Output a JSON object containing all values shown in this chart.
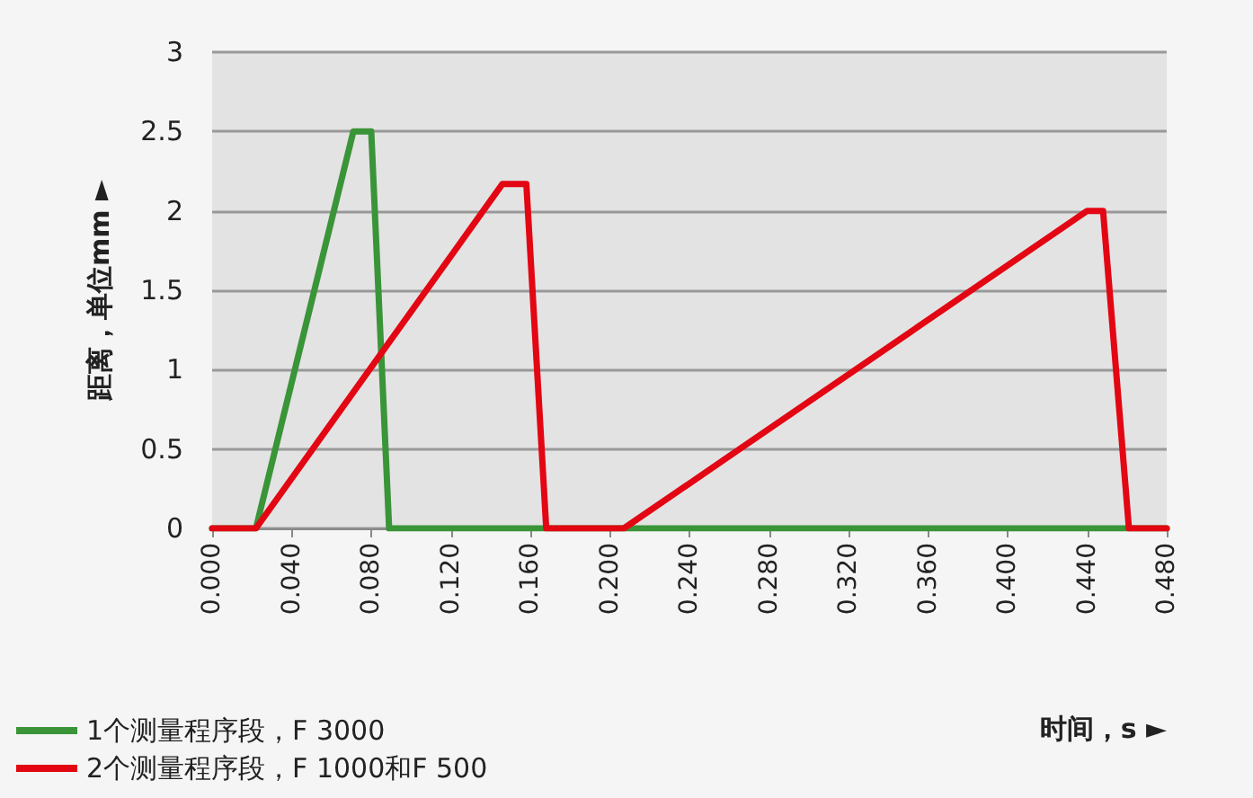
{
  "chart_data": {
    "type": "line",
    "xlabel": "时间，s ►",
    "ylabel": "距离，单位mm ►",
    "xlim": [
      0,
      0.48
    ],
    "xticks": [
      {
        "value": 0,
        "label": "0.000"
      },
      {
        "value": 0.04,
        "label": "0.040"
      },
      {
        "value": 0.08,
        "label": "0.080"
      },
      {
        "value": 0.12,
        "label": "0.120"
      },
      {
        "value": 0.16,
        "label": "0.160"
      },
      {
        "value": 0.2,
        "label": "0.200"
      },
      {
        "value": 0.24,
        "label": "0.240"
      },
      {
        "value": 0.28,
        "label": "0.280"
      },
      {
        "value": 0.32,
        "label": "0.320"
      },
      {
        "value": 0.36,
        "label": "0.360"
      },
      {
        "value": 0.4,
        "label": "0.400"
      },
      {
        "value": 0.44,
        "label": "0.440"
      },
      {
        "value": 0.48,
        "label": "0.480"
      }
    ],
    "ylim": [
      0,
      3
    ],
    "yticks": [
      0,
      0.5,
      1,
      1.5,
      2,
      2.5,
      3
    ],
    "grid": "y",
    "legend": "bottom left",
    "marker": "none",
    "line_style": "solid",
    "series": [
      {
        "name": "1个测量程序段，F 3000",
        "color": "#3a9438",
        "x": [
          0,
          0.022,
          0.071,
          0.08,
          0.089,
          0.48
        ],
        "values": [
          0,
          0,
          2.5,
          2.5,
          0,
          0
        ]
      },
      {
        "name": "2个测量程序段，F 1000和F 500",
        "color": "#e30613",
        "x": [
          0,
          0.022,
          0.146,
          0.158,
          0.168,
          0.207,
          0.44,
          0.448,
          0.461,
          0.48
        ],
        "values": [
          0,
          0,
          2.17,
          2.17,
          0,
          0,
          2,
          2,
          0,
          0
        ]
      }
    ]
  }
}
